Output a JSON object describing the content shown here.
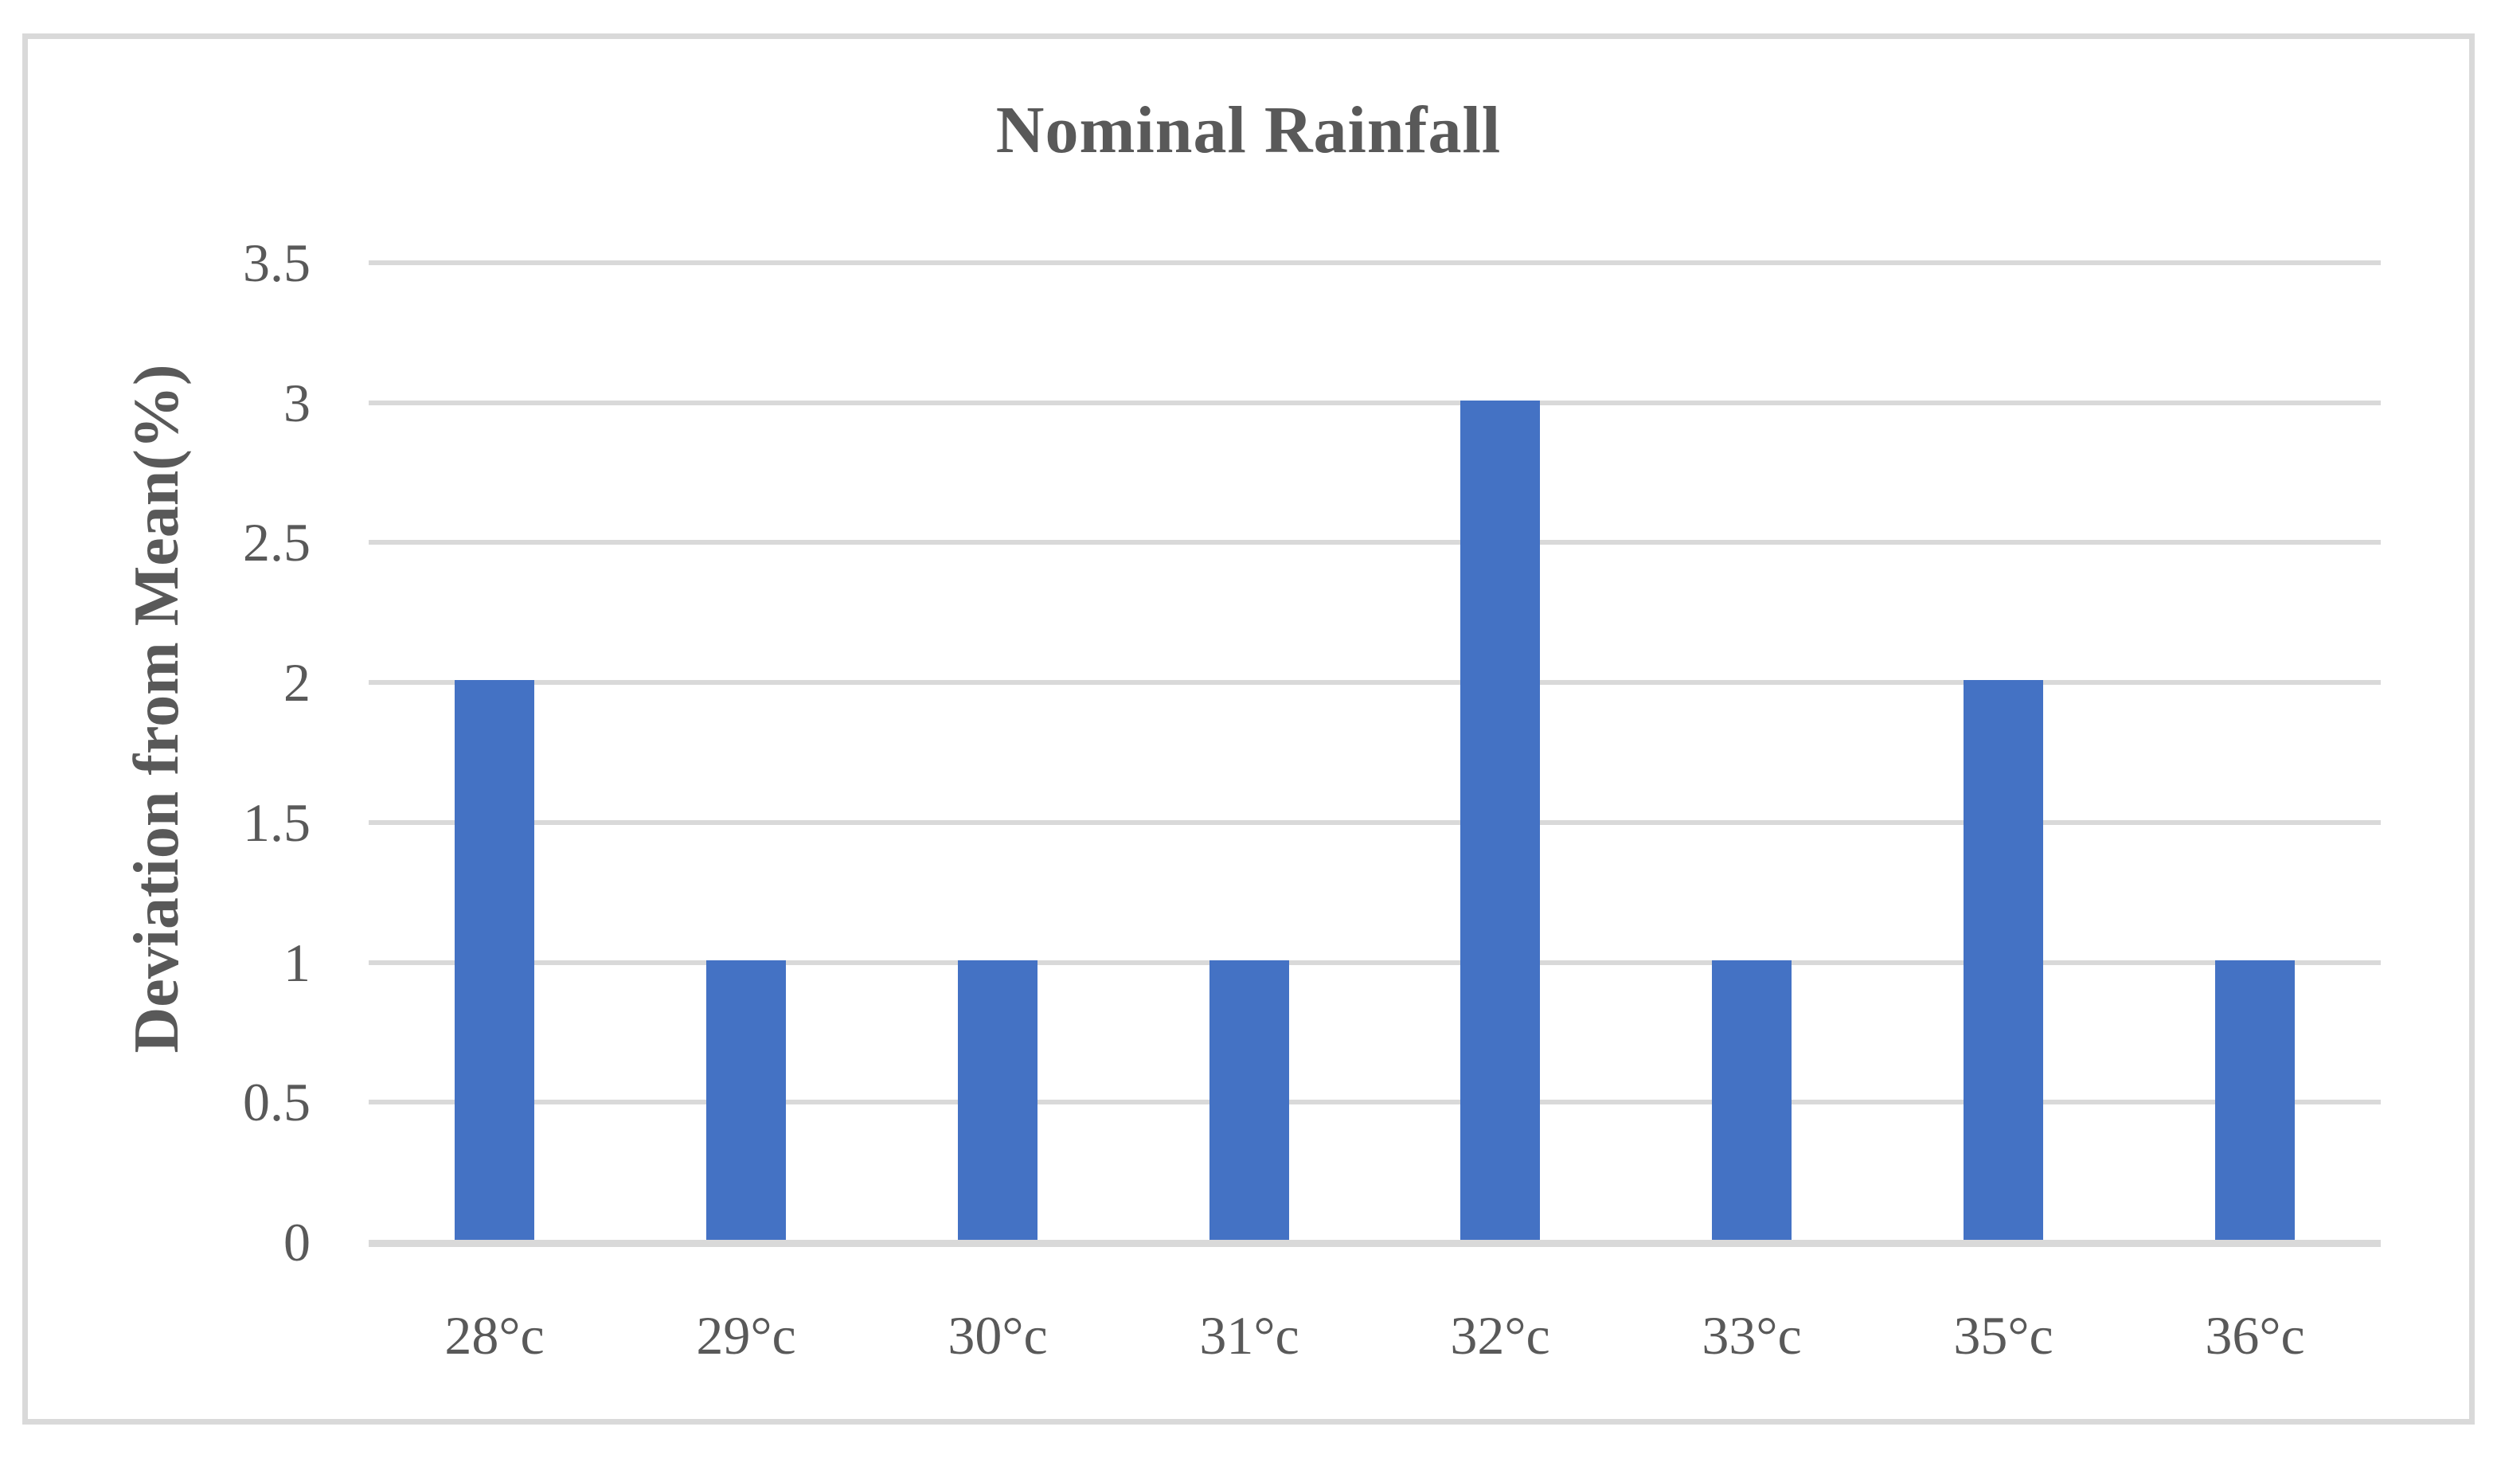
{
  "chart_data": {
    "type": "bar",
    "title": "Nominal Rainfall",
    "ylabel": "Deviation from Mean(%)",
    "xlabel": "",
    "categories": [
      "28°c",
      "29°c",
      "30°c",
      "31°c",
      "32°c",
      "33°c",
      "35°c",
      "36°c"
    ],
    "values": [
      2,
      1,
      1,
      1,
      3,
      1,
      2,
      1
    ],
    "ylim": [
      0,
      3.5
    ],
    "yticks": [
      0,
      0.5,
      1,
      1.5,
      2,
      2.5,
      3,
      3.5
    ],
    "ytick_labels": [
      "0",
      "0.5",
      "1",
      "1.5",
      "2",
      "2.5",
      "3",
      "3.5"
    ],
    "grid": "horizontal",
    "legend": "none",
    "colors": {
      "bar": "#4472C4",
      "gridline": "#D9D9D9",
      "axis_text": "#595959",
      "title_text": "#595959",
      "border": "#D9D9D9",
      "background": "#FFFFFF"
    }
  }
}
